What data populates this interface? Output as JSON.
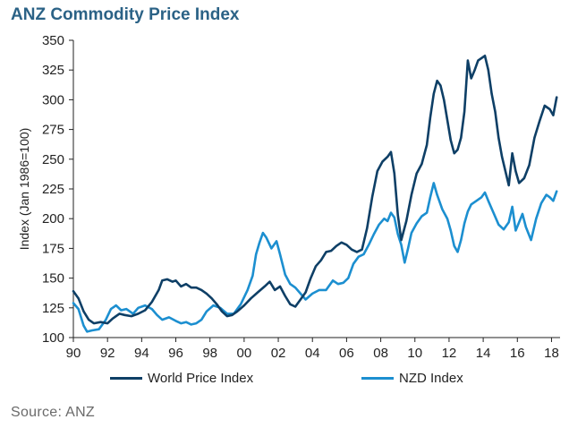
{
  "chart_data": {
    "type": "line",
    "title": "ANZ Commodity Price Index",
    "ylabel": "Index (Jan 1986=100)",
    "xlabel": "",
    "ylim": [
      100,
      350
    ],
    "xlim": [
      1990,
      2018.5
    ],
    "yticks": [
      100,
      125,
      150,
      175,
      200,
      225,
      250,
      275,
      300,
      325,
      350
    ],
    "xticks": [
      {
        "value": 1990,
        "label": "90"
      },
      {
        "value": 1992,
        "label": "92"
      },
      {
        "value": 1994,
        "label": "94"
      },
      {
        "value": 1996,
        "label": "96"
      },
      {
        "value": 1998,
        "label": "98"
      },
      {
        "value": 2000,
        "label": "00"
      },
      {
        "value": 2002,
        "label": "02"
      },
      {
        "value": 2004,
        "label": "04"
      },
      {
        "value": 2006,
        "label": "06"
      },
      {
        "value": 2008,
        "label": "08"
      },
      {
        "value": 2010,
        "label": "10"
      },
      {
        "value": 2012,
        "label": "12"
      },
      {
        "value": 2014,
        "label": "14"
      },
      {
        "value": 2016,
        "label": "16"
      },
      {
        "value": 2018,
        "label": "18"
      }
    ],
    "grid": false,
    "legend_position": "bottom",
    "source": "Source: ANZ",
    "series": [
      {
        "name": "World Price Index",
        "color": "#0e3f66",
        "points": [
          [
            1990.0,
            139
          ],
          [
            1990.3,
            133
          ],
          [
            1990.6,
            122
          ],
          [
            1990.9,
            115
          ],
          [
            1991.2,
            112
          ],
          [
            1991.6,
            113
          ],
          [
            1992.0,
            112
          ],
          [
            1992.3,
            116
          ],
          [
            1992.7,
            120
          ],
          [
            1993.0,
            119
          ],
          [
            1993.4,
            118
          ],
          [
            1993.8,
            120
          ],
          [
            1994.2,
            123
          ],
          [
            1994.6,
            130
          ],
          [
            1995.0,
            140
          ],
          [
            1995.2,
            148
          ],
          [
            1995.5,
            149
          ],
          [
            1995.8,
            147
          ],
          [
            1996.0,
            148
          ],
          [
            1996.3,
            143
          ],
          [
            1996.6,
            145
          ],
          [
            1996.9,
            142
          ],
          [
            1997.2,
            142
          ],
          [
            1997.5,
            140
          ],
          [
            1997.8,
            137
          ],
          [
            1998.1,
            133
          ],
          [
            1998.4,
            128
          ],
          [
            1998.7,
            122
          ],
          [
            1999.0,
            118
          ],
          [
            1999.3,
            119
          ],
          [
            1999.6,
            122
          ],
          [
            2000.0,
            127
          ],
          [
            2000.4,
            133
          ],
          [
            2000.8,
            138
          ],
          [
            2001.2,
            143
          ],
          [
            2001.5,
            147
          ],
          [
            2001.8,
            140
          ],
          [
            2002.1,
            143
          ],
          [
            2002.4,
            135
          ],
          [
            2002.7,
            128
          ],
          [
            2003.0,
            126
          ],
          [
            2003.3,
            132
          ],
          [
            2003.6,
            138
          ],
          [
            2003.9,
            150
          ],
          [
            2004.2,
            160
          ],
          [
            2004.5,
            165
          ],
          [
            2004.8,
            172
          ],
          [
            2005.1,
            173
          ],
          [
            2005.4,
            177
          ],
          [
            2005.7,
            180
          ],
          [
            2006.0,
            178
          ],
          [
            2006.3,
            174
          ],
          [
            2006.6,
            172
          ],
          [
            2006.9,
            174
          ],
          [
            2007.2,
            192
          ],
          [
            2007.5,
            218
          ],
          [
            2007.8,
            240
          ],
          [
            2008.1,
            248
          ],
          [
            2008.4,
            252
          ],
          [
            2008.6,
            256
          ],
          [
            2008.8,
            238
          ],
          [
            2009.0,
            203
          ],
          [
            2009.2,
            182
          ],
          [
            2009.5,
            198
          ],
          [
            2009.8,
            220
          ],
          [
            2010.1,
            238
          ],
          [
            2010.4,
            246
          ],
          [
            2010.7,
            262
          ],
          [
            2010.9,
            285
          ],
          [
            2011.1,
            305
          ],
          [
            2011.3,
            316
          ],
          [
            2011.5,
            312
          ],
          [
            2011.7,
            300
          ],
          [
            2011.9,
            283
          ],
          [
            2012.1,
            266
          ],
          [
            2012.3,
            255
          ],
          [
            2012.5,
            258
          ],
          [
            2012.7,
            268
          ],
          [
            2012.9,
            290
          ],
          [
            2013.1,
            333
          ],
          [
            2013.3,
            318
          ],
          [
            2013.5,
            325
          ],
          [
            2013.7,
            333
          ],
          [
            2013.9,
            335
          ],
          [
            2014.1,
            337
          ],
          [
            2014.3,
            325
          ],
          [
            2014.5,
            305
          ],
          [
            2014.7,
            290
          ],
          [
            2014.9,
            268
          ],
          [
            2015.1,
            252
          ],
          [
            2015.3,
            240
          ],
          [
            2015.5,
            228
          ],
          [
            2015.7,
            255
          ],
          [
            2015.9,
            240
          ],
          [
            2016.1,
            230
          ],
          [
            2016.4,
            234
          ],
          [
            2016.7,
            245
          ],
          [
            2017.0,
            268
          ],
          [
            2017.3,
            282
          ],
          [
            2017.6,
            295
          ],
          [
            2017.9,
            292
          ],
          [
            2018.1,
            287
          ],
          [
            2018.3,
            302
          ]
        ]
      },
      {
        "name": "NZD Index",
        "color": "#1c8fd0",
        "points": [
          [
            1990.0,
            129
          ],
          [
            1990.3,
            124
          ],
          [
            1990.6,
            110
          ],
          [
            1990.8,
            105
          ],
          [
            1991.1,
            106
          ],
          [
            1991.5,
            107
          ],
          [
            1991.9,
            115
          ],
          [
            1992.2,
            124
          ],
          [
            1992.5,
            127
          ],
          [
            1992.8,
            123
          ],
          [
            1993.1,
            124
          ],
          [
            1993.5,
            120
          ],
          [
            1993.8,
            125
          ],
          [
            1994.2,
            127
          ],
          [
            1994.6,
            124
          ],
          [
            1994.9,
            119
          ],
          [
            1995.2,
            115
          ],
          [
            1995.6,
            117
          ],
          [
            1996.0,
            114
          ],
          [
            1996.3,
            112
          ],
          [
            1996.6,
            113
          ],
          [
            1996.9,
            111
          ],
          [
            1997.2,
            112
          ],
          [
            1997.5,
            115
          ],
          [
            1997.8,
            122
          ],
          [
            1998.2,
            127
          ],
          [
            1998.6,
            125
          ],
          [
            1999.0,
            120
          ],
          [
            1999.4,
            120
          ],
          [
            1999.8,
            128
          ],
          [
            2000.2,
            140
          ],
          [
            2000.5,
            152
          ],
          [
            2000.7,
            170
          ],
          [
            2000.9,
            180
          ],
          [
            2001.1,
            188
          ],
          [
            2001.3,
            184
          ],
          [
            2001.6,
            175
          ],
          [
            2001.9,
            181
          ],
          [
            2002.1,
            170
          ],
          [
            2002.4,
            153
          ],
          [
            2002.7,
            145
          ],
          [
            2003.0,
            142
          ],
          [
            2003.3,
            137
          ],
          [
            2003.6,
            132
          ],
          [
            2004.0,
            137
          ],
          [
            2004.4,
            140
          ],
          [
            2004.8,
            140
          ],
          [
            2005.2,
            148
          ],
          [
            2005.5,
            145
          ],
          [
            2005.8,
            146
          ],
          [
            2006.1,
            150
          ],
          [
            2006.4,
            162
          ],
          [
            2006.7,
            168
          ],
          [
            2007.0,
            170
          ],
          [
            2007.3,
            178
          ],
          [
            2007.6,
            187
          ],
          [
            2007.9,
            195
          ],
          [
            2008.2,
            200
          ],
          [
            2008.4,
            198
          ],
          [
            2008.6,
            205
          ],
          [
            2008.8,
            201
          ],
          [
            2009.0,
            187
          ],
          [
            2009.2,
            178
          ],
          [
            2009.4,
            163
          ],
          [
            2009.6,
            175
          ],
          [
            2009.8,
            188
          ],
          [
            2010.1,
            196
          ],
          [
            2010.4,
            202
          ],
          [
            2010.7,
            205
          ],
          [
            2010.9,
            218
          ],
          [
            2011.1,
            230
          ],
          [
            2011.3,
            220
          ],
          [
            2011.6,
            208
          ],
          [
            2011.9,
            200
          ],
          [
            2012.1,
            190
          ],
          [
            2012.3,
            177
          ],
          [
            2012.5,
            172
          ],
          [
            2012.7,
            182
          ],
          [
            2012.9,
            196
          ],
          [
            2013.1,
            206
          ],
          [
            2013.3,
            212
          ],
          [
            2013.6,
            215
          ],
          [
            2013.9,
            218
          ],
          [
            2014.1,
            222
          ],
          [
            2014.3,
            215
          ],
          [
            2014.6,
            205
          ],
          [
            2014.9,
            195
          ],
          [
            2015.2,
            191
          ],
          [
            2015.5,
            197
          ],
          [
            2015.7,
            210
          ],
          [
            2015.9,
            190
          ],
          [
            2016.1,
            197
          ],
          [
            2016.3,
            204
          ],
          [
            2016.5,
            193
          ],
          [
            2016.8,
            182
          ],
          [
            2017.1,
            200
          ],
          [
            2017.4,
            213
          ],
          [
            2017.7,
            220
          ],
          [
            2017.9,
            218
          ],
          [
            2018.1,
            215
          ],
          [
            2018.3,
            223
          ]
        ]
      }
    ]
  }
}
